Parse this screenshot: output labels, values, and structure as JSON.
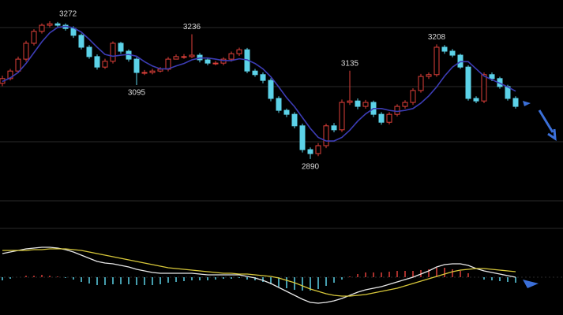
{
  "chart_data": {
    "type": "candlestick",
    "open": [
      3100,
      3113,
      3134,
      3167,
      3211,
      3244,
      3261,
      3265,
      3261,
      3252,
      3233,
      3200,
      3174,
      3145,
      3161,
      3211,
      3189,
      3167,
      3130,
      3130,
      3134,
      3139,
      3167,
      3174,
      3174,
      3178,
      3165,
      3156,
      3156,
      3167,
      3182,
      3193,
      3134,
      3124,
      3108,
      3058,
      3025,
      3014,
      2982,
      2916,
      2905,
      2927,
      2982,
      2971,
      3047,
      3051,
      3036,
      3047,
      3014,
      2992,
      3014,
      3036,
      3047,
      3080,
      3119,
      3124,
      3200,
      3189,
      3178,
      3145,
      3058,
      3051,
      3124,
      3113,
      3091,
      3058
    ],
    "high": [
      3121,
      3140,
      3174,
      3218,
      3250,
      3266,
      3272,
      3270,
      3266,
      3258,
      3238,
      3206,
      3180,
      3168,
      3216,
      3215,
      3194,
      3172,
      3137,
      3140,
      3145,
      3173,
      3180,
      3181,
      3236,
      3184,
      3170,
      3162,
      3172,
      3188,
      3199,
      3198,
      3140,
      3130,
      3114,
      3064,
      3030,
      3020,
      2988,
      2922,
      2934,
      2988,
      2990,
      3055,
      3135,
      3058,
      3054,
      3052,
      3020,
      3020,
      3042,
      3053,
      3086,
      3126,
      3130,
      3208,
      3206,
      3195,
      3182,
      3150,
      3064,
      3130,
      3130,
      3118,
      3096,
      3064
    ],
    "low": [
      3092,
      3108,
      3128,
      3160,
      3205,
      3238,
      3255,
      3255,
      3246,
      3226,
      3194,
      3168,
      3138,
      3140,
      3155,
      3182,
      3160,
      3095,
      3123,
      3125,
      3130,
      3133,
      3168,
      3168,
      3170,
      3158,
      3150,
      3150,
      3150,
      3160,
      3176,
      3128,
      3118,
      3100,
      3050,
      3018,
      3006,
      2975,
      2908,
      2890,
      2898,
      2920,
      2964,
      2965,
      3040,
      3028,
      3030,
      3006,
      2985,
      2986,
      3008,
      3030,
      3040,
      3074,
      3112,
      3118,
      3182,
      3172,
      3140,
      3052,
      3045,
      3045,
      3106,
      3085,
      3052,
      3030
    ],
    "close": [
      3113,
      3134,
      3167,
      3211,
      3244,
      3261,
      3265,
      3261,
      3252,
      3233,
      3200,
      3174,
      3145,
      3161,
      3211,
      3189,
      3167,
      3130,
      3130,
      3134,
      3139,
      3167,
      3174,
      3174,
      3178,
      3165,
      3156,
      3156,
      3167,
      3182,
      3193,
      3134,
      3124,
      3108,
      3058,
      3025,
      3014,
      2982,
      2916,
      2905,
      2927,
      2982,
      2971,
      3047,
      3051,
      3036,
      3047,
      3014,
      2992,
      3014,
      3036,
      3047,
      3080,
      3119,
      3124,
      3200,
      3189,
      3178,
      3145,
      3058,
      3051,
      3124,
      3113,
      3091,
      3058,
      3036
    ],
    "ma": [
      3105,
      3115,
      3130,
      3155,
      3185,
      3215,
      3240,
      3255,
      3258,
      3254,
      3242,
      3222,
      3200,
      3180,
      3175,
      3178,
      3180,
      3175,
      3160,
      3148,
      3140,
      3140,
      3148,
      3155,
      3165,
      3170,
      3170,
      3167,
      3163,
      3163,
      3168,
      3165,
      3155,
      3140,
      3118,
      3090,
      3060,
      3035,
      3005,
      2975,
      2950,
      2940,
      2940,
      2950,
      2970,
      2995,
      3015,
      3030,
      3030,
      3025,
      3022,
      3025,
      3030,
      3045,
      3065,
      3090,
      3120,
      3145,
      3160,
      3160,
      3140,
      3120,
      3110,
      3100,
      3090,
      3078
    ],
    "annotations": [
      3272,
      3236,
      3095,
      3135,
      3208,
      2890
    ],
    "ylim": [
      2785,
      3331
    ],
    "up_color": "#e0403a",
    "down_color": "#5cd2e8",
    "ma_color": "#3c3cb4",
    "macd": {
      "dif": [
        30,
        32,
        34,
        36,
        37,
        38,
        38,
        37,
        35,
        32,
        28,
        24,
        20,
        18,
        17,
        15,
        13,
        10,
        8,
        6,
        5,
        5,
        5,
        5,
        5,
        4,
        3,
        3,
        3,
        3,
        3,
        1,
        -1,
        -4,
        -8,
        -13,
        -18,
        -23,
        -28,
        -32,
        -33,
        -32,
        -30,
        -27,
        -23,
        -19,
        -16,
        -14,
        -12,
        -9,
        -6,
        -3,
        0,
        4,
        8,
        13,
        16,
        17,
        17,
        15,
        11,
        8,
        6,
        4,
        2,
        0
      ],
      "dea": [
        34,
        34,
        34,
        34,
        35,
        35,
        36,
        36,
        36,
        35,
        34,
        32,
        30,
        28,
        26,
        24,
        22,
        20,
        18,
        16,
        14,
        12,
        11,
        10,
        9,
        8,
        7,
        6,
        5,
        5,
        4,
        4,
        3,
        2,
        1,
        -1,
        -4,
        -7,
        -11,
        -15,
        -18,
        -21,
        -23,
        -24,
        -24,
        -23,
        -22,
        -20,
        -18,
        -16,
        -14,
        -11,
        -8,
        -5,
        -2,
        1,
        4,
        7,
        9,
        10,
        11,
        11,
        10,
        9,
        8,
        7
      ],
      "hist": [
        -4,
        -2,
        0,
        2,
        2,
        3,
        2,
        1,
        -1,
        -3,
        -6,
        -8,
        -10,
        -10,
        -9,
        -9,
        -9,
        -10,
        -10,
        -10,
        -9,
        -7,
        -6,
        -5,
        -4,
        -4,
        -4,
        -3,
        -2,
        -2,
        -1,
        -3,
        -4,
        -6,
        -9,
        -12,
        -14,
        -16,
        -17,
        -17,
        -15,
        -11,
        -7,
        -3,
        1,
        4,
        6,
        6,
        6,
        7,
        8,
        8,
        8,
        9,
        10,
        12,
        12,
        10,
        8,
        5,
        0,
        -3,
        -4,
        -5,
        -6,
        -7
      ],
      "ylim": [
        -48,
        62
      ],
      "dif_color": "#e8e8e8",
      "dea_color": "#d8c83a"
    }
  }
}
